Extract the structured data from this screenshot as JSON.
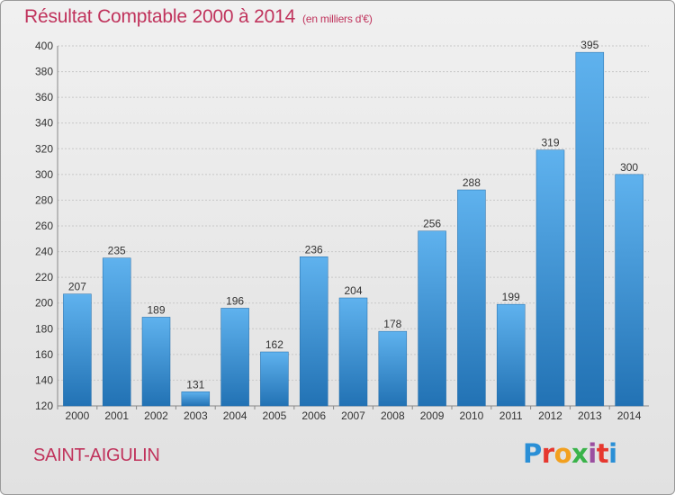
{
  "header": {
    "title": "Résultat Comptable 2000 à 2014",
    "subtitle": "(en milliers d'€)"
  },
  "footer": {
    "commune": "SAINT-AIGULIN",
    "brand": {
      "letters": [
        "P",
        "r",
        "o",
        "x",
        "i",
        "t",
        "i"
      ],
      "colors": [
        "#2a8fd6",
        "#e6382f",
        "#f2a01f",
        "#3ab34a",
        "#9b4fa0",
        "#e6382f",
        "#2a8fd6"
      ]
    }
  },
  "colors": {
    "bar_top": "#5fb2ee",
    "bar_bottom": "#2272b4",
    "accent": "#c0335c"
  },
  "chart_data": {
    "type": "bar",
    "title": "Résultat Comptable 2000 à 2014",
    "subtitle": "(en milliers d'€)",
    "xlabel": "",
    "ylabel": "",
    "categories": [
      "2000",
      "2001",
      "2002",
      "2003",
      "2004",
      "2005",
      "2006",
      "2007",
      "2008",
      "2009",
      "2010",
      "2011",
      "2012",
      "2013",
      "2014"
    ],
    "values": [
      207,
      235,
      189,
      131,
      196,
      162,
      236,
      204,
      178,
      256,
      288,
      199,
      319,
      395,
      300
    ],
    "ylim": [
      120,
      400
    ],
    "yticks": [
      120,
      140,
      160,
      180,
      200,
      220,
      240,
      260,
      280,
      300,
      320,
      340,
      360,
      380,
      400
    ],
    "grid": true,
    "legend": "none"
  }
}
